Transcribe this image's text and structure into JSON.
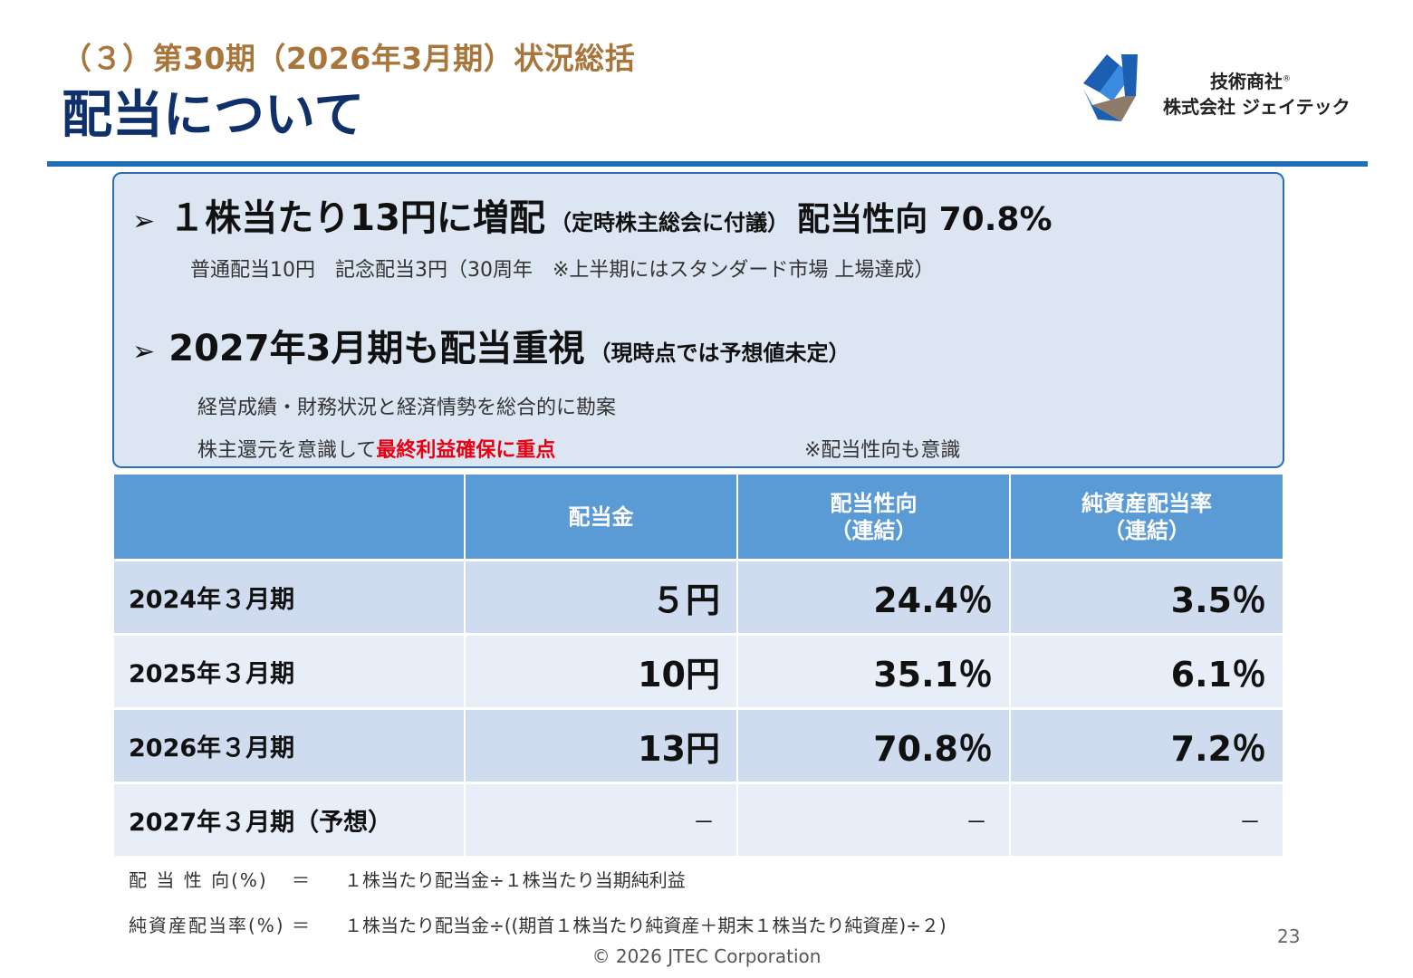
{
  "header": {
    "subtitle": "（３）第30期（2026年3月期）状況総括",
    "title": "配当について"
  },
  "logo": {
    "line1": "技術商社",
    "registered": "®",
    "line2": "株式会社 ジェイテック",
    "colors": {
      "blue": "#1b5fb3",
      "brown": "#8c7b68"
    }
  },
  "summary": {
    "bullet_icon": "➢",
    "point1": {
      "heading": "１株当たり13円に増配",
      "note": "（定時株主総会に付議）",
      "ratio": "配当性向 70.8%",
      "detail": "普通配当10円　記念配当3円（30周年　※上半期にはスタンダード市場 上場達成）"
    },
    "point2": {
      "heading": "2027年3月期も配当重視",
      "note": "（現時点では予想値未定）",
      "detail1": "経営成績・財務状況と経済情勢を総合的に勘案",
      "detail2_prefix": "株主還元を意識して",
      "detail2_highlight": "最終利益確保に重点",
      "detail2_note": "※配当性向も意識"
    }
  },
  "table": {
    "columns": [
      "",
      "配当金",
      {
        "line1": "配当性向",
        "line2": "（連結）"
      },
      {
        "line1": "純資産配当率",
        "line2": "（連結）"
      }
    ],
    "rows": [
      {
        "period": "2024年３月期",
        "dividend": "５円",
        "payout": "24.4％",
        "doe": "3.5％"
      },
      {
        "period": "2025年３月期",
        "dividend": "10円",
        "payout": "35.1％",
        "doe": "6.1％"
      },
      {
        "period": "2026年３月期",
        "dividend": "13円",
        "payout": "70.8％",
        "doe": "7.2％"
      },
      {
        "period": "2027年３月期（予想）",
        "dividend": "－",
        "payout": "－",
        "doe": "－"
      }
    ]
  },
  "footnotes": [
    {
      "label": "配 当 性 向(%)",
      "eq": "＝",
      "formula": "１株当たり配当金÷１株当たり当期純利益"
    },
    {
      "label": "純資産配当率(%)",
      "eq": "＝",
      "formula": "１株当たり配当金÷((期首１株当たり純資産＋期末１株当たり純資産)÷２)"
    }
  ],
  "page_number": "23",
  "copyright": "© 2026 JTEC Corporation"
}
